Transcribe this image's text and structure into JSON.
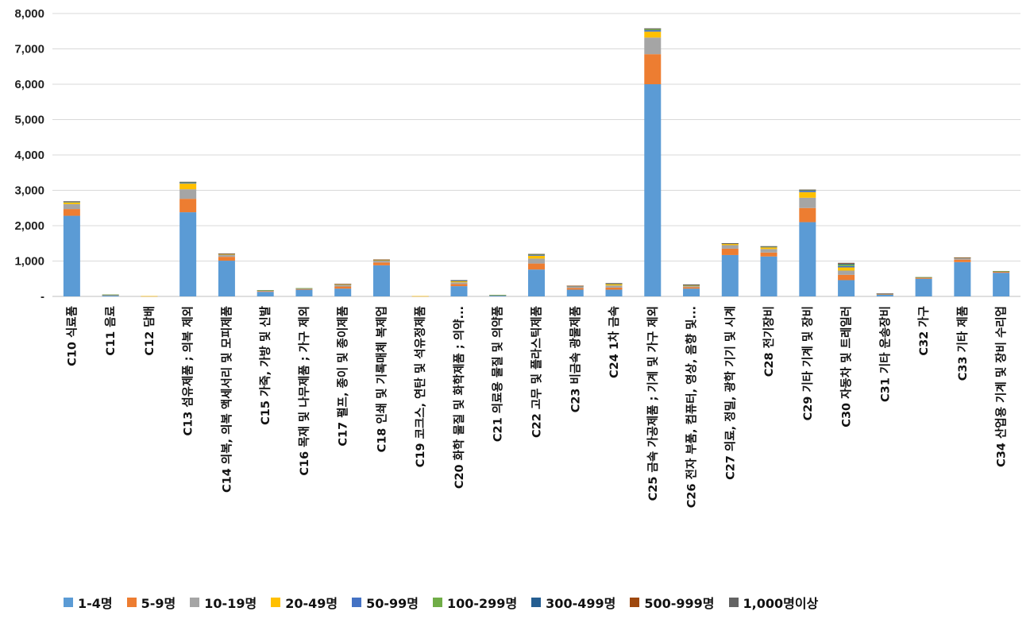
{
  "chart_data": {
    "type": "bar",
    "stacked": true,
    "ylim": [
      0,
      8000
    ],
    "yticks": [
      "-",
      "1,000",
      "2,000",
      "3,000",
      "4,000",
      "5,000",
      "6,000",
      "7,000",
      "8,000"
    ],
    "grid": true,
    "legend_position": "bottom",
    "categories": [
      "C10 식료품",
      "C11 음료",
      "C12 담배",
      "C13 섬유제품 ; 의복 제외",
      "C14 의복, 의복 액세서리 및 모피제품",
      "C15 가죽, 가방 및 신발",
      "C16 목재 및 나무제품 ; 가구 제외",
      "C17 펄프, 종이 및 종이제품",
      "C18 인쇄 및 기록매체 복제업",
      "C19 코크스, 연탄 및 석유정제품",
      "C20 화학 물질 및 화학제품 ; 의약...",
      "C21 의료용 물질 및 의약품",
      "C22 고무 및 플라스틱제품",
      "C23 비금속 광물제품",
      "C24 1차 금속",
      "C25 금속 가공제품 ; 기계 및 가구 제외",
      "C26 전자 부품, 컴퓨터, 영상, 음향 및...",
      "C27 의료, 정밀, 광학 기기 및 시계",
      "C28 전기장비",
      "C29 기타 기계 및 장비",
      "C30 자동차 및 트레일러",
      "C31 기타 운송장비",
      "C32 가구",
      "C33 기타 제품",
      "C34 산업용 기계 및 장비 수리업"
    ],
    "series": [
      {
        "name": "1-4명",
        "color": "#5B9BD5",
        "values": [
          2280,
          30,
          5,
          2380,
          1010,
          130,
          190,
          220,
          880,
          5,
          290,
          30,
          760,
          190,
          190,
          6000,
          220,
          1170,
          1130,
          2100,
          460,
          50,
          500,
          970,
          670
        ]
      },
      {
        "name": "5-9명",
        "color": "#ED7D31",
        "values": [
          190,
          10,
          2,
          380,
          110,
          20,
          20,
          60,
          80,
          2,
          60,
          5,
          170,
          50,
          60,
          850,
          40,
          180,
          110,
          400,
          150,
          10,
          30,
          70,
          30
        ]
      },
      {
        "name": "10-19명",
        "color": "#A5A5A5",
        "values": [
          140,
          5,
          1,
          270,
          60,
          15,
          15,
          40,
          50,
          1,
          50,
          5,
          140,
          40,
          60,
          470,
          30,
          100,
          100,
          290,
          120,
          10,
          10,
          40,
          10
        ]
      },
      {
        "name": "20-49명",
        "color": "#FFC000",
        "values": [
          50,
          5,
          1,
          160,
          20,
          8,
          5,
          20,
          20,
          1,
          30,
          3,
          80,
          15,
          40,
          170,
          20,
          40,
          50,
          160,
          90,
          5,
          3,
          15,
          3
        ]
      },
      {
        "name": "50-99명",
        "color": "#4472C4",
        "values": [
          10,
          1,
          0,
          20,
          5,
          2,
          2,
          5,
          5,
          0,
          10,
          1,
          20,
          3,
          8,
          40,
          8,
          5,
          10,
          40,
          40,
          2,
          1,
          3,
          1
        ]
      },
      {
        "name": "100-299명",
        "color": "#70AD47",
        "values": [
          10,
          1,
          0,
          20,
          5,
          2,
          2,
          5,
          5,
          0,
          10,
          1,
          20,
          3,
          10,
          30,
          8,
          5,
          10,
          20,
          40,
          2,
          1,
          3,
          1
        ]
      },
      {
        "name": "300-499명",
        "color": "#255E91",
        "values": [
          5,
          0,
          0,
          5,
          1,
          0,
          0,
          1,
          1,
          0,
          5,
          0,
          5,
          1,
          3,
          10,
          5,
          2,
          5,
          5,
          20,
          1,
          0,
          1,
          0
        ]
      },
      {
        "name": "500-999명",
        "color": "#9E480E",
        "values": [
          3,
          0,
          0,
          3,
          1,
          0,
          0,
          1,
          1,
          0,
          3,
          0,
          3,
          1,
          2,
          5,
          3,
          1,
          3,
          3,
          15,
          1,
          0,
          1,
          0
        ]
      },
      {
        "name": "1,000명이상",
        "color": "#636363",
        "values": [
          2,
          0,
          0,
          2,
          0,
          0,
          0,
          0,
          0,
          0,
          2,
          0,
          2,
          0,
          2,
          5,
          5,
          1,
          2,
          2,
          15,
          1,
          0,
          0,
          0
        ]
      }
    ]
  }
}
